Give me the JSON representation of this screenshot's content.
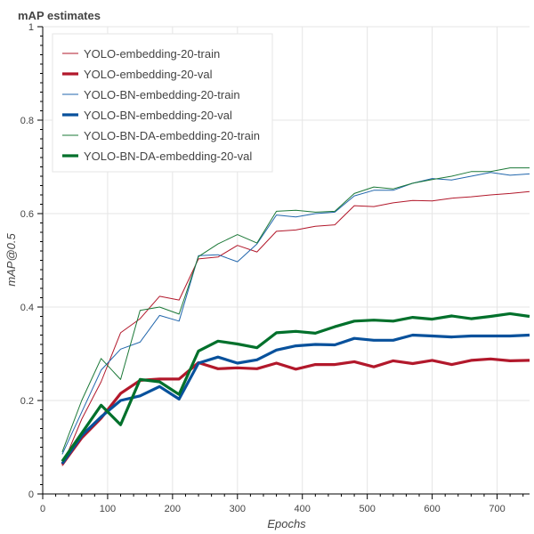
{
  "chart_data": {
    "type": "line",
    "title": "mAP estimates",
    "xlabel": "Epochs",
    "ylabel": "mAP@0.5",
    "xlim": [
      0,
      750
    ],
    "ylim": [
      0,
      1
    ],
    "x_ticks": [
      0,
      100,
      200,
      300,
      400,
      500,
      600,
      700
    ],
    "y_ticks": [
      0,
      0.2,
      0.4,
      0.6,
      0.8,
      1
    ],
    "x_tick_labels": [
      "0",
      "100",
      "200",
      "300",
      "400",
      "500",
      "600",
      "700"
    ],
    "y_tick_labels": [
      "0",
      "0.2",
      "0.4",
      "0.6",
      "0.8",
      "1"
    ],
    "grid": true,
    "legend_position": "top-left",
    "x": [
      30,
      60,
      90,
      120,
      150,
      180,
      210,
      240,
      270,
      300,
      330,
      360,
      390,
      420,
      450,
      480,
      510,
      540,
      570,
      600,
      630,
      660,
      690,
      720,
      750
    ],
    "series": [
      {
        "name": "YOLO-embedding-20-train",
        "color": "#b2182b",
        "width": "thin",
        "values": [
          0.06,
          0.16,
          0.24,
          0.345,
          0.375,
          0.423,
          0.415,
          0.503,
          0.507,
          0.532,
          0.518,
          0.562,
          0.565,
          0.573,
          0.576,
          0.617,
          0.615,
          0.623,
          0.628,
          0.627,
          0.633,
          0.636,
          0.64,
          0.643,
          0.647
        ]
      },
      {
        "name": "YOLO-embedding-20-val",
        "color": "#b2182b",
        "width": "thick",
        "values": [
          0.063,
          0.12,
          0.162,
          0.215,
          0.243,
          0.246,
          0.246,
          0.281,
          0.268,
          0.27,
          0.268,
          0.28,
          0.267,
          0.277,
          0.277,
          0.283,
          0.272,
          0.285,
          0.279,
          0.286,
          0.277,
          0.286,
          0.289,
          0.285,
          0.286
        ]
      },
      {
        "name": "YOLO-BN-embedding-20-train",
        "color": "#2166ac",
        "width": "thin",
        "values": [
          0.085,
          0.175,
          0.265,
          0.31,
          0.325,
          0.382,
          0.37,
          0.51,
          0.512,
          0.497,
          0.535,
          0.597,
          0.593,
          0.6,
          0.603,
          0.638,
          0.65,
          0.65,
          0.665,
          0.675,
          0.672,
          0.68,
          0.688,
          0.682,
          0.685
        ]
      },
      {
        "name": "YOLO-BN-embedding-20-val",
        "color": "#08519c",
        "width": "thick",
        "values": [
          0.065,
          0.125,
          0.165,
          0.2,
          0.21,
          0.23,
          0.203,
          0.28,
          0.293,
          0.28,
          0.287,
          0.308,
          0.317,
          0.32,
          0.319,
          0.333,
          0.329,
          0.329,
          0.34,
          0.338,
          0.336,
          0.338,
          0.338,
          0.338,
          0.34
        ]
      },
      {
        "name": "YOLO-BN-DA-embedding-20-train",
        "color": "#1b7837",
        "width": "thin",
        "values": [
          0.09,
          0.2,
          0.29,
          0.245,
          0.393,
          0.4,
          0.385,
          0.508,
          0.535,
          0.555,
          0.537,
          0.605,
          0.607,
          0.603,
          0.605,
          0.643,
          0.657,
          0.653,
          0.665,
          0.673,
          0.68,
          0.69,
          0.69,
          0.698,
          0.698
        ]
      },
      {
        "name": "YOLO-BN-DA-embedding-20-val",
        "color": "#00702b",
        "width": "thick",
        "values": [
          0.07,
          0.13,
          0.19,
          0.148,
          0.245,
          0.24,
          0.213,
          0.306,
          0.327,
          0.321,
          0.313,
          0.345,
          0.348,
          0.344,
          0.358,
          0.37,
          0.372,
          0.37,
          0.378,
          0.374,
          0.381,
          0.375,
          0.38,
          0.386,
          0.38
        ]
      }
    ]
  }
}
